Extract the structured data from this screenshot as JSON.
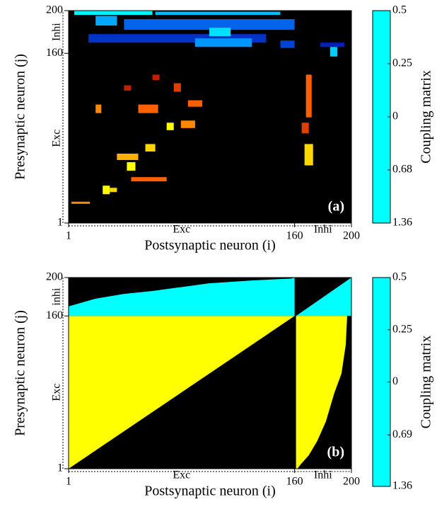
{
  "chart_data": [
    {
      "type": "heatmap",
      "panel_label": "(a)",
      "xlabel": "Postsynaptic neuron (i)",
      "ylabel": "Presynaptic neuron (j)",
      "colorbar_label": "Coupling matrix",
      "xlim": [
        1,
        200
      ],
      "ylim": [
        1,
        200
      ],
      "xticks": [
        1,
        160,
        200
      ],
      "yticks": [
        1,
        160,
        200
      ],
      "x_groups": [
        {
          "label": "Exc",
          "range": [
            1,
            160
          ]
        },
        {
          "label": "Inhi",
          "range": [
            160,
            200
          ]
        }
      ],
      "y_groups": [
        {
          "label": "Exc",
          "range": [
            1,
            160
          ]
        },
        {
          "label": "Inhi",
          "range": [
            160,
            200
          ]
        }
      ],
      "clim": [
        -1.36,
        0.5
      ],
      "cticks": [
        0.5,
        0.25,
        0,
        {
          "value": -0.68,
          "label": "0.68"
        },
        {
          "value": -1.36,
          "label": "1.36"
        }
      ],
      "colormap": [
        {
          "value": -1.36,
          "color": "#00ffff"
        },
        {
          "value": -0.68,
          "color": "#0080ff"
        },
        {
          "value": -0.3,
          "color": "#0000a0"
        },
        {
          "value": 0,
          "color": "#000000"
        },
        {
          "value": 0.15,
          "color": "#a00000"
        },
        {
          "value": 0.3,
          "color": "#ff6000"
        },
        {
          "value": 0.5,
          "color": "#ffff00"
        }
      ],
      "background": "#000000",
      "patches": [
        {
          "x": [
            5,
            60
          ],
          "y": [
            196,
            200
          ],
          "value": -1.3
        },
        {
          "x": [
            62,
            150
          ],
          "y": [
            196,
            199
          ],
          "value": -1.0
        },
        {
          "x": [
            20,
            35
          ],
          "y": [
            186,
            195
          ],
          "value": -0.9
        },
        {
          "x": [
            40,
            160
          ],
          "y": [
            182,
            192
          ],
          "value": -0.6
        },
        {
          "x": [
            15,
            140
          ],
          "y": [
            170,
            178
          ],
          "value": -0.45
        },
        {
          "x": [
            90,
            130
          ],
          "y": [
            166,
            174
          ],
          "value": -0.8
        },
        {
          "x": [
            100,
            115
          ],
          "y": [
            176,
            184
          ],
          "value": -1.2
        },
        {
          "x": [
            150,
            160
          ],
          "y": [
            165,
            172
          ],
          "value": -0.5
        },
        {
          "x": [
            185,
            190
          ],
          "y": [
            157,
            166
          ],
          "value": -1.1
        },
        {
          "x": [
            178,
            195
          ],
          "y": [
            166,
            170
          ],
          "value": -0.4
        },
        {
          "x": [
            3,
            16
          ],
          "y": [
            19,
            21
          ],
          "value": 0.35
        },
        {
          "x": [
            25,
            30
          ],
          "y": [
            28,
            36
          ],
          "value": 0.5
        },
        {
          "x": [
            30,
            35
          ],
          "y": [
            30,
            34
          ],
          "value": 0.45
        },
        {
          "x": [
            42,
            48
          ],
          "y": [
            50,
            58
          ],
          "value": 0.5
        },
        {
          "x": [
            35,
            50
          ],
          "y": [
            60,
            66
          ],
          "value": 0.4
        },
        {
          "x": [
            55,
            62
          ],
          "y": [
            68,
            75
          ],
          "value": 0.45
        },
        {
          "x": [
            70,
            75
          ],
          "y": [
            88,
            95
          ],
          "value": 0.5
        },
        {
          "x": [
            80,
            90
          ],
          "y": [
            90,
            97
          ],
          "value": 0.35
        },
        {
          "x": [
            20,
            24
          ],
          "y": [
            104,
            112
          ],
          "value": 0.35
        },
        {
          "x": [
            50,
            64
          ],
          "y": [
            104,
            112
          ],
          "value": 0.3
        },
        {
          "x": [
            75,
            80
          ],
          "y": [
            124,
            132
          ],
          "value": 0.25
        },
        {
          "x": [
            40,
            45
          ],
          "y": [
            125,
            130
          ],
          "value": 0.2
        },
        {
          "x": [
            60,
            65
          ],
          "y": [
            135,
            140
          ],
          "value": 0.2
        },
        {
          "x": [
            167,
            173
          ],
          "y": [
            55,
            75
          ],
          "value": 0.45
        },
        {
          "x": [
            168,
            172
          ],
          "y": [
            100,
            140
          ],
          "value": 0.3
        },
        {
          "x": [
            165,
            170
          ],
          "y": [
            85,
            95
          ],
          "value": 0.25
        },
        {
          "x": [
            45,
            70
          ],
          "y": [
            40,
            44
          ],
          "value": 0.3
        },
        {
          "x": [
            85,
            95
          ],
          "y": [
            110,
            116
          ],
          "value": 0.3
        }
      ]
    },
    {
      "type": "region-map",
      "panel_label": "(b)",
      "xlabel": "Postsynaptic neuron (i)",
      "ylabel": "Presynaptic neuron (j)",
      "colorbar_label": "Coupling matrix",
      "xlim": [
        1,
        200
      ],
      "ylim": [
        1,
        200
      ],
      "xticks": [
        1,
        160,
        200
      ],
      "yticks": [
        1,
        160,
        200
      ],
      "x_groups": [
        {
          "label": "Exc",
          "range": [
            1,
            160
          ]
        },
        {
          "label": "Inhi",
          "range": [
            160,
            200
          ]
        }
      ],
      "y_groups": [
        {
          "label": "Exc",
          "range": [
            1,
            160
          ]
        },
        {
          "label": "inhi",
          "range": [
            160,
            200
          ]
        }
      ],
      "clim": [
        -1.36,
        0.5
      ],
      "cticks": [
        0.5,
        0.25,
        0,
        {
          "value": -0.69,
          "label": "0.69"
        },
        {
          "value": -1.36,
          "label": "1.36"
        }
      ],
      "colormap": [
        {
          "value": -1.36,
          "color": "#00ffff"
        },
        {
          "value": -0.69,
          "color": "#0080ff"
        },
        {
          "value": -0.3,
          "color": "#0000a0"
        },
        {
          "value": 0,
          "color": "#000000"
        },
        {
          "value": 0.15,
          "color": "#a00000"
        },
        {
          "value": 0.3,
          "color": "#ff6000"
        },
        {
          "value": 0.5,
          "color": "#ffff00"
        }
      ],
      "background": "#000000",
      "regions": [
        {
          "value": 0.5,
          "x": [
            1,
            1,
            160
          ],
          "y": [
            1,
            160,
            160
          ]
        },
        {
          "value": -1.36,
          "x": [
            1,
            1,
            20,
            40,
            60,
            80,
            100,
            130,
            158,
            160,
            160
          ],
          "y": [
            160,
            170,
            178,
            183,
            186,
            190,
            194,
            197,
            199,
            200,
            160
          ]
        },
        {
          "value": -1.36,
          "x": [
            161,
            200,
            200
          ],
          "y": [
            160,
            200,
            160
          ]
        },
        {
          "value": 0.5,
          "x": [
            161,
            161,
            197,
            196,
            193,
            188,
            182,
            176,
            170,
            164,
            162
          ],
          "y": [
            1,
            160,
            160,
            130,
            100,
            80,
            50,
            30,
            15,
            5,
            1
          ]
        }
      ]
    }
  ]
}
